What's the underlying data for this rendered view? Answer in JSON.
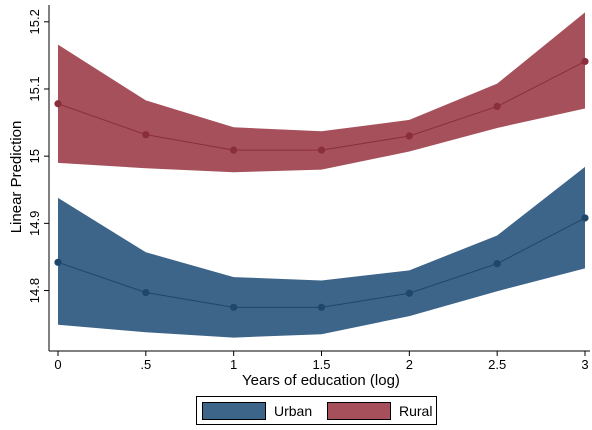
{
  "chart_data": {
    "type": "area",
    "xlabel": "Years of education (log)",
    "ylabel": "Linear Prediction",
    "x": [
      0,
      0.5,
      1,
      1.5,
      2,
      2.5,
      3
    ],
    "x_tick_labels": [
      "0",
      ".5",
      "1",
      "1.5",
      "2",
      "2.5",
      "3"
    ],
    "y_ticks": [
      14.8,
      14.9,
      15,
      15.1,
      15.2
    ],
    "y_tick_labels": [
      "14.8",
      "14.9",
      "15",
      "15.1",
      "15.2"
    ],
    "xlim": [
      0,
      3
    ],
    "ylim": [
      14.71,
      15.225
    ],
    "grid": false,
    "legend_position": "bottom",
    "series": [
      {
        "name": "Urban",
        "color": "#3d6489",
        "line_color": "#1f4769",
        "values": [
          14.842,
          14.797,
          14.775,
          14.775,
          14.796,
          14.84,
          14.908
        ],
        "ci_lower": [
          14.749,
          14.738,
          14.73,
          14.735,
          14.762,
          14.799,
          14.833
        ],
        "ci_upper": [
          14.938,
          14.857,
          14.82,
          14.815,
          14.83,
          14.882,
          14.984
        ]
      },
      {
        "name": "Rural",
        "color": "#a5505a",
        "line_color": "#8a2e3b",
        "values": [
          15.078,
          15.032,
          15.009,
          15.009,
          15.03,
          15.074,
          15.141
        ],
        "ci_lower": [
          14.99,
          14.982,
          14.976,
          14.98,
          15.007,
          15.042,
          15.071
        ],
        "ci_upper": [
          15.166,
          15.083,
          15.043,
          15.037,
          15.054,
          15.108,
          15.214
        ]
      }
    ]
  }
}
